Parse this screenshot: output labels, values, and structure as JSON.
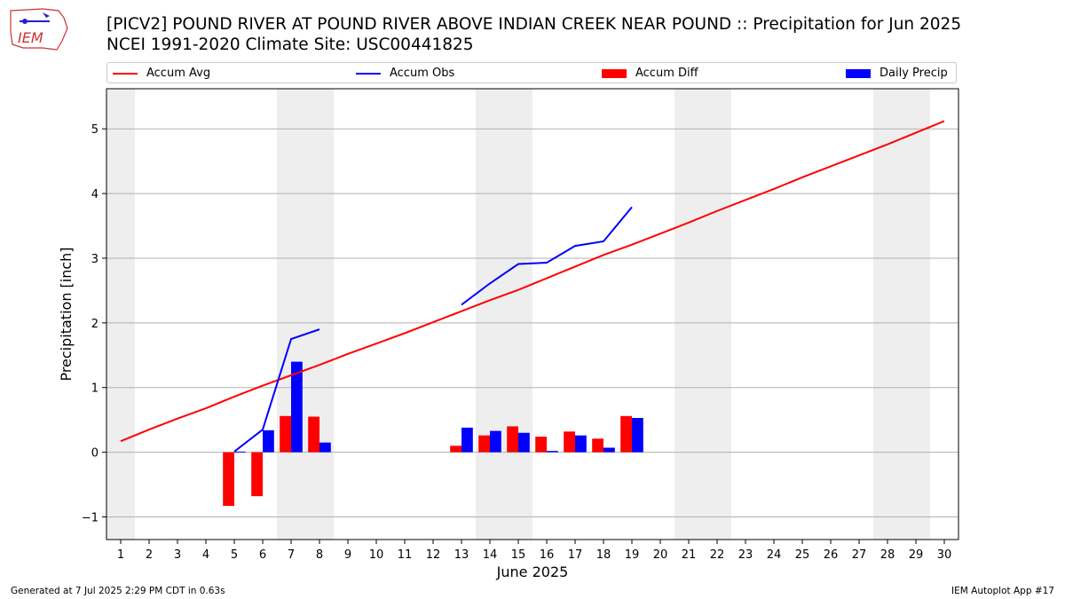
{
  "header": {
    "title_line1": "[PICV2] POUND RIVER  AT POUND RIVER ABOVE INDIAN CREEK NEAR POUND :: Precipitation for Jun 2025",
    "title_line2": "NCEI 1991-2020 Climate Site: USC00441825",
    "logo_text": "IEM"
  },
  "footer": {
    "left": "Generated at 7 Jul 2025 2:29 PM CDT in 0.63s",
    "right": "IEM Autoplot App #17"
  },
  "chart_data": {
    "type": "bar",
    "xlabel": "June 2025",
    "ylabel": "Precipitation [inch]",
    "xlim": [
      0.5,
      30.5
    ],
    "ylim": [
      -1.35,
      5.62
    ],
    "yticks": [
      -1,
      0,
      1,
      2,
      3,
      4,
      5
    ],
    "xticks": [
      1,
      2,
      3,
      4,
      5,
      6,
      7,
      8,
      9,
      10,
      11,
      12,
      13,
      14,
      15,
      16,
      17,
      18,
      19,
      20,
      21,
      22,
      23,
      24,
      25,
      26,
      27,
      28,
      29,
      30
    ],
    "grid": "horizontal",
    "legend_position": "top",
    "weekend_shading": [
      [
        0.5,
        1.5
      ],
      [
        6.5,
        8.5
      ],
      [
        13.5,
        15.5
      ],
      [
        20.5,
        22.5
      ],
      [
        27.5,
        29.5
      ]
    ],
    "colors": {
      "avg": "#ff0000",
      "obs": "#0000ff",
      "diff": "#ff0000",
      "daily": "#0000ff",
      "shade": "#eeeeee"
    },
    "legend": [
      "Accum Avg",
      "Accum Obs",
      "Accum Diff",
      "Daily Precip"
    ],
    "accum_avg": {
      "name": "Accum Avg",
      "x": [
        1,
        2,
        3,
        4,
        5,
        6,
        7,
        8,
        9,
        10,
        11,
        12,
        13,
        14,
        15,
        16,
        17,
        18,
        19,
        20,
        21,
        22,
        23,
        24,
        25,
        26,
        27,
        28,
        29,
        30
      ],
      "values": [
        0.17,
        0.35,
        0.52,
        0.68,
        0.86,
        1.03,
        1.19,
        1.35,
        1.52,
        1.68,
        1.84,
        2.01,
        2.18,
        2.35,
        2.51,
        2.69,
        2.87,
        3.05,
        3.21,
        3.38,
        3.55,
        3.73,
        3.9,
        4.07,
        4.25,
        4.42,
        4.59,
        4.76,
        4.94,
        5.12
      ]
    },
    "accum_obs": {
      "name": "Accum Obs",
      "segments": [
        {
          "x": [
            5,
            6,
            7,
            8
          ],
          "values": [
            0.01,
            0.35,
            1.75,
            1.9
          ]
        },
        {
          "x": [
            13,
            14,
            15,
            16,
            17,
            18,
            19
          ],
          "values": [
            2.28,
            2.61,
            2.91,
            2.93,
            3.19,
            3.26,
            3.79
          ]
        }
      ]
    },
    "accum_diff": {
      "name": "Accum Diff",
      "x": [
        5,
        6,
        7,
        8,
        13,
        14,
        15,
        16,
        17,
        18,
        19
      ],
      "values": [
        -0.83,
        -0.68,
        0.56,
        0.55,
        0.1,
        0.26,
        0.4,
        0.24,
        0.32,
        0.21,
        0.56
      ]
    },
    "daily_precip": {
      "name": "Daily Precip",
      "x": [
        5,
        6,
        7,
        8,
        13,
        14,
        15,
        16,
        17,
        18,
        19
      ],
      "values": [
        0.01,
        0.34,
        1.4,
        0.15,
        0.38,
        0.33,
        0.3,
        0.02,
        0.26,
        0.07,
        0.53
      ]
    }
  }
}
